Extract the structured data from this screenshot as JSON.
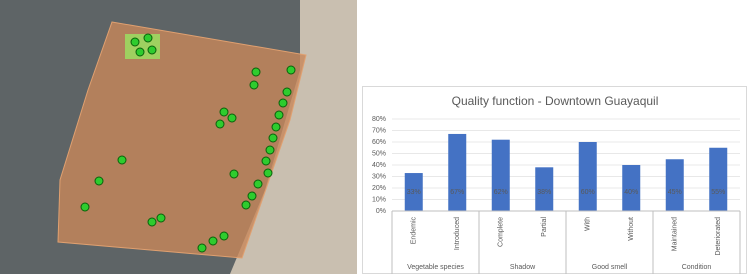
{
  "chart_data": {
    "type": "bar",
    "title": "Quality function - Downtown Guayaquil",
    "categories": [
      "Endemic",
      "Introduced",
      "Complete",
      "Partial",
      "With",
      "Without",
      "Maintained",
      "Deteriorated"
    ],
    "values": [
      33,
      67,
      62,
      38,
      60,
      40,
      45,
      55
    ],
    "value_labels": [
      "33%",
      "67%",
      "62%",
      "38%",
      "60%",
      "40%",
      "45%",
      "55%"
    ],
    "groups": [
      "Vegetable species",
      "Shadow",
      "Good smell",
      "Condition"
    ],
    "color": "#4472c4",
    "ylim": [
      0,
      80
    ],
    "yticks": [
      {
        "value": 0,
        "label": "0%"
      },
      {
        "value": 10,
        "label": "10%"
      },
      {
        "value": 20,
        "label": "20%"
      },
      {
        "value": 30,
        "label": "30%"
      },
      {
        "value": 40,
        "label": "40%"
      },
      {
        "value": 50,
        "label": "50%"
      },
      {
        "value": 60,
        "label": "60%"
      },
      {
        "value": 70,
        "label": "70%"
      },
      {
        "value": 80,
        "label": "80%"
      }
    ],
    "grid": true
  }
}
